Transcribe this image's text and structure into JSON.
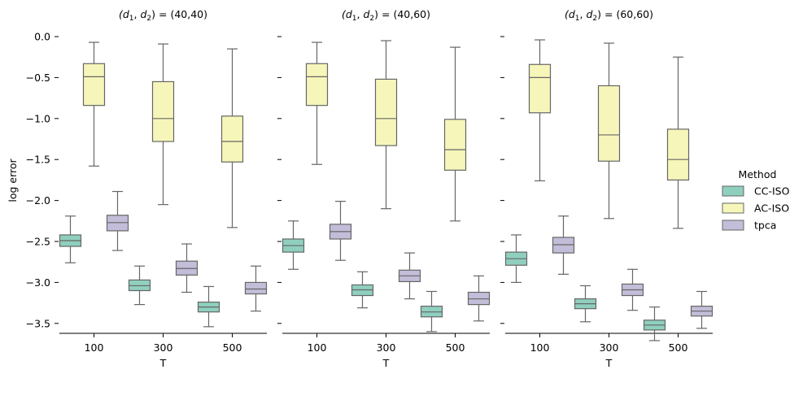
{
  "chart_data": {
    "type": "box",
    "ylabel": "log error",
    "xlabel": "T",
    "ylim": [
      -3.88,
      0.05
    ],
    "yticks": [
      0.0,
      -0.5,
      -1.0,
      -1.5,
      -2.0,
      -2.5,
      -3.0,
      -3.5
    ],
    "ytick_labels": [
      "0.0",
      "−0.5",
      "−1.0",
      "−1.5",
      "−2.0",
      "−2.5",
      "−3.0",
      "−3.5"
    ],
    "categories": [
      "100",
      "300",
      "500"
    ],
    "legend": {
      "title": "Method",
      "placement": "right",
      "entries": [
        {
          "name": "CC-ISO",
          "color": "#8fcfbe"
        },
        {
          "name": "AC-ISO",
          "color": "#f6f6ba"
        },
        {
          "name": "tpca",
          "color": "#c3bdd9"
        }
      ]
    },
    "stroke_color": "#666666",
    "panels": [
      {
        "title_prefix": "(d",
        "title_suffix": ") = (40,40)",
        "boxes": {
          "CC-ISO": [
            {
              "T": "100",
              "whislo": -2.76,
              "q1": -2.56,
              "med": -2.49,
              "q3": -2.42,
              "whishi": -2.19
            },
            {
              "T": "300",
              "whislo": -3.27,
              "q1": -3.1,
              "med": -3.04,
              "q3": -2.97,
              "whishi": -2.8
            },
            {
              "T": "500",
              "whislo": -3.54,
              "q1": -3.36,
              "med": -3.3,
              "q3": -3.24,
              "whishi": -3.05
            }
          ],
          "AC-ISO": [
            {
              "T": "100",
              "whislo": -1.58,
              "q1": -0.84,
              "med": -0.49,
              "q3": -0.33,
              "whishi": -0.07
            },
            {
              "T": "300",
              "whislo": -2.05,
              "q1": -1.28,
              "med": -1.0,
              "q3": -0.55,
              "whishi": -0.09
            },
            {
              "T": "500",
              "whislo": -2.33,
              "q1": -1.53,
              "med": -1.28,
              "q3": -0.97,
              "whishi": -0.15
            }
          ],
          "tpca": [
            {
              "T": "100",
              "whislo": -2.61,
              "q1": -2.37,
              "med": -2.27,
              "q3": -2.18,
              "whishi": -1.89
            },
            {
              "T": "300",
              "whislo": -3.12,
              "q1": -2.91,
              "med": -2.83,
              "q3": -2.74,
              "whishi": -2.53
            },
            {
              "T": "500",
              "whislo": -3.35,
              "q1": -3.14,
              "med": -3.08,
              "q3": -3.0,
              "whishi": -2.8
            }
          ]
        }
      },
      {
        "title_prefix": "(d",
        "title_suffix": ") = (40,60)",
        "boxes": {
          "CC-ISO": [
            {
              "T": "100",
              "whislo": -2.84,
              "q1": -2.63,
              "med": -2.55,
              "q3": -2.47,
              "whishi": -2.25
            },
            {
              "T": "300",
              "whislo": -3.31,
              "q1": -3.16,
              "med": -3.09,
              "q3": -3.03,
              "whishi": -2.87
            },
            {
              "T": "500",
              "whislo": -3.6,
              "q1": -3.42,
              "med": -3.36,
              "q3": -3.29,
              "whishi": -3.11
            }
          ],
          "AC-ISO": [
            {
              "T": "100",
              "whislo": -1.56,
              "q1": -0.84,
              "med": -0.49,
              "q3": -0.33,
              "whishi": -0.07
            },
            {
              "T": "300",
              "whislo": -2.1,
              "q1": -1.33,
              "med": -1.0,
              "q3": -0.52,
              "whishi": -0.05
            },
            {
              "T": "500",
              "whislo": -2.25,
              "q1": -1.63,
              "med": -1.38,
              "q3": -1.01,
              "whishi": -0.13
            }
          ],
          "tpca": [
            {
              "T": "100",
              "whislo": -2.73,
              "q1": -2.47,
              "med": -2.38,
              "q3": -2.29,
              "whishi": -2.01
            },
            {
              "T": "300",
              "whislo": -3.2,
              "q1": -2.99,
              "med": -2.92,
              "q3": -2.85,
              "whishi": -2.64
            },
            {
              "T": "500",
              "whislo": -3.47,
              "q1": -3.27,
              "med": -3.2,
              "q3": -3.12,
              "whishi": -2.92
            }
          ]
        }
      },
      {
        "title_prefix": "(d",
        "title_suffix": ") = (60,60)",
        "boxes": {
          "CC-ISO": [
            {
              "T": "100",
              "whislo": -3.0,
              "q1": -2.79,
              "med": -2.71,
              "q3": -2.63,
              "whishi": -2.42
            },
            {
              "T": "300",
              "whislo": -3.48,
              "q1": -3.32,
              "med": -3.26,
              "q3": -3.2,
              "whishi": -3.04
            },
            {
              "T": "500",
              "whislo": -3.71,
              "q1": -3.58,
              "med": -3.52,
              "q3": -3.46,
              "whishi": -3.3
            }
          ],
          "AC-ISO": [
            {
              "T": "100",
              "whislo": -1.76,
              "q1": -0.93,
              "med": -0.5,
              "q3": -0.34,
              "whishi": -0.04
            },
            {
              "T": "300",
              "whislo": -2.22,
              "q1": -1.52,
              "med": -1.2,
              "q3": -0.6,
              "whishi": -0.08
            },
            {
              "T": "500",
              "whislo": -2.34,
              "q1": -1.75,
              "med": -1.5,
              "q3": -1.13,
              "whishi": -0.25
            }
          ],
          "tpca": [
            {
              "T": "100",
              "whislo": -2.9,
              "q1": -2.64,
              "med": -2.54,
              "q3": -2.45,
              "whishi": -2.19
            },
            {
              "T": "300",
              "whislo": -3.34,
              "q1": -3.16,
              "med": -3.09,
              "q3": -3.02,
              "whishi": -2.84
            },
            {
              "T": "500",
              "whislo": -3.56,
              "q1": -3.41,
              "med": -3.35,
              "q3": -3.29,
              "whishi": -3.11
            }
          ]
        }
      }
    ]
  }
}
